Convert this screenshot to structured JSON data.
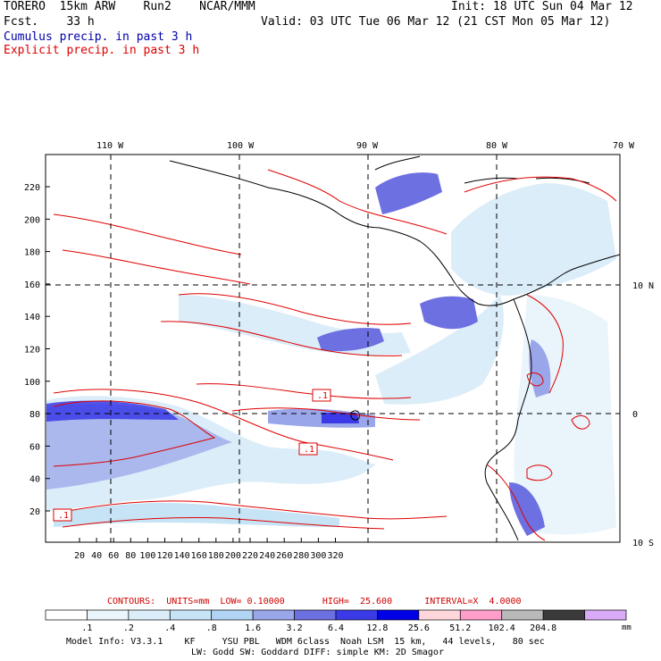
{
  "header": {
    "model": "TORERO  15km ARW    Run2    NCAR/MMM",
    "init": "Init: 18 UTC Sun 04 Mar 12",
    "fcst": "Fcst.    33 h",
    "valid": "Valid: 03 UTC Tue 06 Mar 12 (21 CST Mon 05 Mar 12)",
    "cumulus_label": "Cumulus precip. in past 3 h",
    "explicit_label": "Explicit precip. in past 3 h"
  },
  "colors": {
    "cumulus": "#0000aa",
    "explicit": "#dd0000",
    "contour": "#e00000",
    "coast": "#000000"
  },
  "map": {
    "lon_labels": [
      "110 W",
      "100 W",
      "90 W",
      "80 W",
      "70 W"
    ],
    "lat_labels": [
      "10 N",
      "0",
      "10 S"
    ],
    "x_ticks": [
      "20",
      "40",
      "60",
      "80",
      "100",
      "120",
      "140",
      "160",
      "180",
      "200",
      "220",
      "240",
      "260",
      "280",
      "300",
      "320"
    ],
    "y_ticks": [
      "20",
      "40",
      "60",
      "80",
      "100",
      "120",
      "140",
      "160",
      "180",
      "200",
      "220"
    ],
    "contour_labels": [
      ".1",
      ".1",
      ".1"
    ]
  },
  "caption": {
    "contours": "CONTOURS:  UNITS=mm  LOW= 0.10000       HIGH=  25.600      INTERVAL=X  4.0000"
  },
  "colorbar": {
    "labels": [
      ".1",
      ".2",
      ".4",
      ".8",
      "1.6",
      "3.2",
      "6.4",
      "12.8",
      "25.6",
      "51.2",
      "102.4",
      "204.8"
    ],
    "unit": "mm",
    "colors": [
      "#ffffff",
      "#eaf4fb",
      "#dbedf9",
      "#c6e4f6",
      "#b2d4f4",
      "#9aa6ea",
      "#6d70e0",
      "#3a3ae6",
      "#0000e6",
      "#ffd6dc",
      "#ff9ec8",
      "#b9b9b9",
      "#3a3a3a",
      "#d9aaf7"
    ]
  },
  "footer": {
    "line1": "Model Info: V3.3.1    KF     YSU PBL   WDM 6class  Noah LSM  15 km,   44 levels,   80 sec",
    "line2": "LW: Godd SW: Goddard DIFF: simple KM: 2D Smagor"
  }
}
